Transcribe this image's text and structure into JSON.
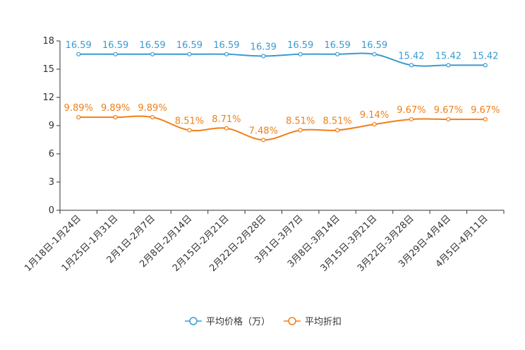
{
  "chart_data": {
    "type": "line",
    "categories": [
      "1月18日-1月24日",
      "1月25日-1月31日",
      "2月1日-2月7日",
      "2月8日-2月14日",
      "2月15日-2月21日",
      "2月22日-2月28日",
      "3月1日-3月7日",
      "3月8日-3月14日",
      "3月15日-3月21日",
      "3月22日-3月28日",
      "3月29日-4月4日",
      "4月5日-4月11日"
    ],
    "yticks": [
      0,
      3,
      6,
      9,
      12,
      15,
      18
    ],
    "ylim": [
      0,
      18
    ],
    "grid": false,
    "legend_position": "bottom-center",
    "series": [
      {
        "name": "平均价格（万）",
        "color": "#3a9bd0",
        "values": [
          16.59,
          16.59,
          16.59,
          16.59,
          16.59,
          16.39,
          16.59,
          16.59,
          16.59,
          15.42,
          15.42,
          15.42
        ],
        "labels": [
          "16.59",
          "16.59",
          "16.59",
          "16.59",
          "16.59",
          "16.39",
          "16.59",
          "16.59",
          "16.59",
          "15.42",
          "15.42",
          "15.42"
        ]
      },
      {
        "name": "平均折扣",
        "color": "#f07f18",
        "values": [
          9.89,
          9.89,
          9.89,
          8.51,
          8.71,
          7.48,
          8.51,
          8.51,
          9.14,
          9.67,
          9.67,
          9.67
        ],
        "labels": [
          "9.89%",
          "9.89%",
          "9.89%",
          "8.51%",
          "8.71%",
          "7.48%",
          "8.51%",
          "8.51%",
          "9.14%",
          "9.67%",
          "9.67%",
          "9.67%"
        ]
      }
    ]
  }
}
